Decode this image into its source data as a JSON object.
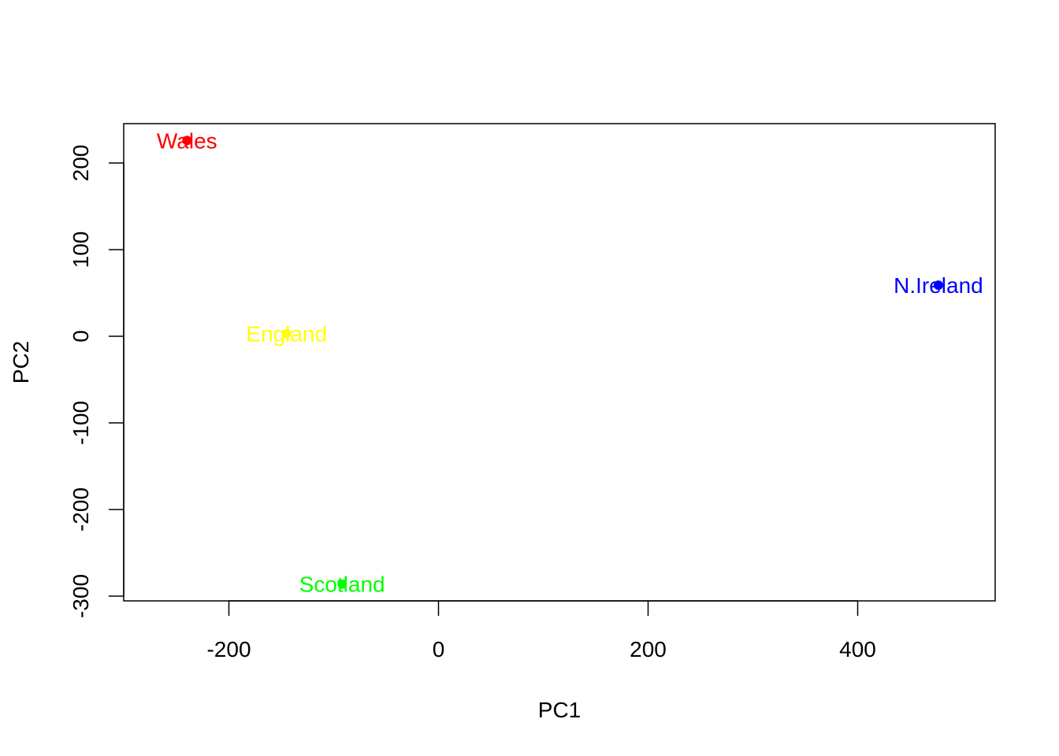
{
  "chart_data": {
    "type": "scatter",
    "title": "",
    "xlabel": "PC1",
    "ylabel": "PC2",
    "xlim": [
      -300,
      530
    ],
    "ylim": [
      -300,
      245
    ],
    "x_ticks": [
      -200,
      0,
      200,
      400
    ],
    "y_ticks": [
      -300,
      -200,
      -100,
      0,
      100,
      200
    ],
    "grid": false,
    "legend": "none",
    "points": [
      {
        "label": "England",
        "x": -145,
        "y": 3,
        "color": "#ffff00"
      },
      {
        "label": "Wales",
        "x": -240,
        "y": 226,
        "color": "#ff0000"
      },
      {
        "label": "Scotland",
        "x": -92,
        "y": -286,
        "color": "#00ff00"
      },
      {
        "label": "N.Ireland",
        "x": 477,
        "y": 59,
        "color": "#0000ff"
      }
    ]
  }
}
